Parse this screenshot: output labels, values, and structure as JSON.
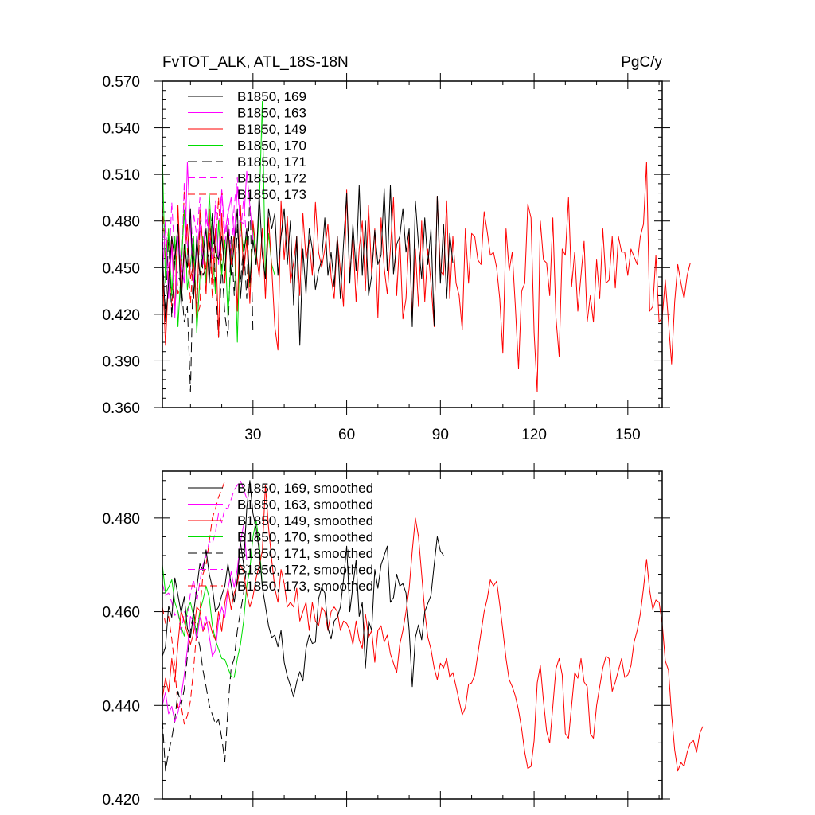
{
  "figure": {
    "title_left": "FvTOT_ALK, ATL_18S-18N",
    "title_right": "PgC/y"
  },
  "colors": {
    "black": "#000000",
    "magenta": "#ff00ff",
    "red": "#ff0000",
    "green": "#00dd00"
  },
  "chart_data": [
    {
      "type": "line",
      "title": "FvTOT_ALK, ATL_18S-18N",
      "units": "PgC/y",
      "xlabel": "",
      "ylabel": "",
      "xlim": [
        1,
        161
      ],
      "ylim": [
        0.36,
        0.57
      ],
      "xticks": [
        30,
        60,
        90,
        120,
        150
      ],
      "yticks": [
        0.36,
        0.39,
        0.42,
        0.45,
        0.48,
        0.51,
        0.54,
        0.57
      ],
      "ytick_labels": [
        "0.360",
        "0.390",
        "0.420",
        "0.450",
        "0.480",
        "0.510",
        "0.540",
        "0.570"
      ],
      "legend_position": "top-left",
      "series": [
        {
          "name": "B1850, 169",
          "color": "black",
          "dash": "solid",
          "values": [
            0.462,
            0.415,
            0.44,
            0.47,
            0.455,
            0.478,
            0.425,
            0.465,
            0.45,
            0.488,
            0.43,
            0.47,
            0.445,
            0.458,
            0.475,
            0.44,
            0.482,
            0.46,
            0.455,
            0.47,
            0.448,
            0.478,
            0.445,
            0.465,
            0.488,
            0.43,
            0.458,
            0.475,
            0.44,
            0.468,
            0.452,
            0.498,
            0.458,
            0.443,
            0.488,
            0.475,
            0.485,
            0.445,
            0.47,
            0.488,
            0.452,
            0.48,
            0.426,
            0.47,
            0.4,
            0.462,
            0.433,
            0.475,
            0.462,
            0.436,
            0.448,
            0.455,
            0.482,
            0.445,
            0.46,
            0.438,
            0.47,
            0.43,
            0.465,
            0.498,
            0.44,
            0.478,
            0.448,
            0.503,
            0.445,
            0.48,
            0.432,
            0.445,
            0.474,
            0.452,
            0.458,
            0.501,
            0.448,
            0.503,
            0.446,
            0.465,
            0.47,
            0.488,
            0.46,
            0.475,
            0.412,
            0.493,
            0.465,
            0.443,
            0.482,
            0.452,
            0.475,
            0.413,
            0.496,
            0.44,
            0.478,
            0.43,
            0.472,
            0.453
          ]
        },
        {
          "name": "B1850, 163",
          "color": "magenta",
          "dash": "solid",
          "values": [
            0.445,
            0.478,
            0.43,
            0.465,
            0.418,
            0.47,
            0.452,
            0.44,
            0.518,
            0.475,
            0.44,
            0.462,
            0.478,
            0.452,
            0.488,
            0.47,
            0.46,
            0.49,
            0.452,
            0.5,
            0.472,
            0.485,
            0.495,
            0.47,
            0.502,
            0.48,
            0.478,
            0.512,
            0.49,
            0.468
          ]
        },
        {
          "name": "B1850, 149",
          "color": "red",
          "dash": "solid",
          "values": [
            0.45,
            0.4,
            0.445,
            0.47,
            0.42,
            0.49,
            0.435,
            0.458,
            0.478,
            0.443,
            0.453,
            0.418,
            0.487,
            0.463,
            0.433,
            0.488,
            0.44,
            0.475,
            0.405,
            0.485,
            0.44,
            0.478,
            0.452,
            0.472,
            0.422,
            0.49,
            0.445,
            0.468,
            0.427,
            0.48,
            0.46,
            0.444,
            0.475,
            0.43,
            0.482,
            0.45,
            0.412,
            0.397,
            0.493,
            0.455,
            0.483,
            0.44,
            0.453,
            0.47,
            0.432,
            0.485,
            0.455,
            0.468,
            0.445,
            0.492,
            0.46,
            0.45,
            0.462,
            0.478,
            0.444,
            0.43,
            0.47,
            0.448,
            0.425,
            0.5,
            0.445,
            0.47,
            0.428,
            0.462,
            0.48,
            0.435,
            0.49,
            0.445,
            0.475,
            0.418,
            0.482,
            0.45,
            0.433,
            0.462,
            0.495,
            0.432,
            0.47,
            0.417,
            0.43,
            0.472,
            0.418,
            0.462,
            0.425,
            0.48,
            0.428,
            0.462,
            0.44,
            0.412,
            0.496,
            0.448,
            0.445,
            0.493,
            0.43,
            0.47,
            0.44,
            0.432,
            0.41,
            0.475,
            0.44,
            0.472,
            0.47,
            0.455,
            0.452,
            0.486,
            0.473,
            0.458,
            0.46,
            0.45,
            0.43,
            0.395,
            0.475,
            0.448,
            0.46,
            0.425,
            0.385,
            0.435,
            0.44,
            0.491,
            0.482,
            0.408,
            0.37,
            0.48,
            0.455,
            0.453,
            0.432,
            0.482,
            0.418,
            0.393,
            0.462,
            0.458,
            0.495,
            0.438,
            0.46,
            0.422,
            0.445,
            0.467,
            0.415,
            0.432,
            0.415,
            0.455,
            0.43,
            0.475,
            0.44,
            0.442,
            0.47,
            0.437,
            0.47,
            0.46,
            0.46,
            0.445,
            0.462,
            0.457,
            0.452,
            0.47,
            0.478,
            0.518,
            0.422,
            0.425,
            0.458,
            0.415,
            0.418,
            0.442,
            0.415,
            0.388,
            0.428,
            0.452,
            0.44,
            0.43,
            0.445,
            0.453
          ]
        },
        {
          "name": "B1850, 170",
          "color": "green",
          "dash": "solid",
          "values": [
            0.523,
            0.44,
            0.475,
            0.432,
            0.47,
            0.412,
            0.45,
            0.487,
            0.436,
            0.452,
            0.47,
            0.408,
            0.443,
            0.47,
            0.44,
            0.498,
            0.462,
            0.433,
            0.48,
            0.445,
            0.468,
            0.418,
            0.455,
            0.472,
            0.402,
            0.48,
            0.46,
            0.47,
            0.438,
            0.478,
            0.452,
            0.488,
            0.557,
            0.443,
            0.472,
            0.452,
            0.445
          ]
        },
        {
          "name": "B1850, 171",
          "color": "black",
          "dash": "longdash",
          "values": [
            0.448,
            0.422,
            0.47,
            0.418,
            0.455,
            0.445,
            0.44,
            0.415,
            0.425,
            0.37,
            0.465,
            0.418,
            0.48,
            0.445,
            0.45,
            0.462,
            0.485,
            0.44,
            0.405,
            0.452,
            0.42,
            0.405,
            0.47,
            0.432,
            0.478,
            0.44,
            0.465,
            0.43,
            0.5,
            0.408
          ]
        },
        {
          "name": "B1850, 172",
          "color": "magenta",
          "dash": "dash",
          "values": [
            0.462,
            0.48,
            0.445,
            0.492,
            0.455,
            0.478,
            0.44,
            0.505,
            0.465,
            0.448,
            0.485,
            0.47,
            0.495,
            0.462,
            0.482,
            0.47,
            0.455,
            0.493,
            0.478,
            0.5,
            0.462,
            0.488,
            0.455,
            0.49,
            0.508,
            0.47,
            0.495,
            0.465
          ]
        },
        {
          "name": "B1850, 173",
          "color": "red",
          "dash": "dash",
          "values": [
            0.49,
            0.455,
            0.475,
            0.422,
            0.468,
            0.433,
            0.44,
            0.5,
            0.462,
            0.427,
            0.46,
            0.418,
            0.425,
            0.47,
            0.448,
            0.475,
            0.43,
            0.462,
            0.495,
            0.452
          ]
        }
      ]
    },
    {
      "type": "line",
      "title": "",
      "xlabel": "",
      "ylabel": "",
      "xlim": [
        1,
        161
      ],
      "ylim": [
        0.42,
        0.49
      ],
      "xticks": [
        30,
        60,
        90,
        120,
        150
      ],
      "yticks": [
        0.42,
        0.44,
        0.46,
        0.48
      ],
      "ytick_labels": [
        "0.420",
        "0.440",
        "0.460",
        "0.480"
      ],
      "legend_position": "top-left",
      "series": [
        {
          "name": "B1850, 169, smoothed",
          "color": "black",
          "dash": "solid",
          "values": [
            0.4505,
            0.4525,
            0.4612,
            0.4588,
            0.4672,
            0.4635,
            0.4597,
            0.4632,
            0.4565,
            0.4545,
            0.4598,
            0.465,
            0.4702,
            0.4688,
            0.4732,
            0.468,
            0.4652,
            0.46,
            0.461,
            0.4635,
            0.4655,
            0.4702,
            0.4658,
            0.462,
            0.467,
            0.4748,
            0.47,
            0.482,
            0.488,
            0.481,
            0.4778,
            0.473,
            0.4652,
            0.4612,
            0.457,
            0.4545,
            0.455,
            0.4525,
            0.456,
            0.4492,
            0.4462,
            0.4442,
            0.4418,
            0.445,
            0.4472,
            0.4452,
            0.4522,
            0.455,
            0.4532,
            0.4535,
            0.4628,
            0.4652,
            0.464,
            0.4565,
            0.4542,
            0.458,
            0.4588,
            0.461,
            0.4668,
            0.474,
            0.46,
            0.4655,
            0.471,
            0.459,
            0.462,
            0.448,
            0.458,
            0.456,
            0.469,
            0.465,
            0.47,
            0.472,
            0.474,
            0.462,
            0.463,
            0.468,
            0.4655,
            0.466,
            0.464,
            0.456,
            0.444,
            0.4545,
            0.4572,
            0.454,
            0.46,
            0.4618,
            0.4635,
            0.47,
            0.476,
            0.473,
            0.472
          ]
        },
        {
          "name": "B1850, 163, smoothed",
          "color": "magenta",
          "dash": "solid",
          "values": [
            0.44,
            0.4428,
            0.4382,
            0.4398,
            0.4365,
            0.4385,
            0.442,
            0.4465,
            0.452,
            0.459,
            0.4578,
            0.454,
            0.4588,
            0.4562,
            0.459,
            0.4548,
            0.4505,
            0.4518,
            0.4582,
            0.461,
            0.4588,
            0.4648,
            0.4685,
            0.4652,
            0.4692,
            0.475,
            0.4785,
            0.471
          ]
        },
        {
          "name": "B1850, 149, smoothed",
          "color": "red",
          "dash": "solid",
          "values": [
            0.4415,
            0.4458,
            0.4428,
            0.45,
            0.445,
            0.4532,
            0.4602,
            0.4578,
            0.4555,
            0.453,
            0.4555,
            0.461,
            0.4602,
            0.4558,
            0.4575,
            0.458,
            0.4555,
            0.454,
            0.46,
            0.4558,
            0.462,
            0.465,
            0.4605,
            0.464,
            0.466,
            0.47,
            0.4685,
            0.464,
            0.461,
            0.4632,
            0.4672,
            0.4698,
            0.473,
            0.487,
            0.478,
            0.471,
            0.465,
            0.462,
            0.469,
            0.466,
            0.461,
            0.462,
            0.461,
            0.465,
            0.458,
            0.46,
            0.462,
            0.456,
            0.462,
            0.458,
            0.457,
            0.461,
            0.46,
            0.456,
            0.46,
            0.461,
            0.46,
            0.456,
            0.458,
            0.4575,
            0.456,
            0.453,
            0.458,
            0.454,
            0.4522,
            0.4595,
            0.4545,
            0.456,
            0.4492,
            0.456,
            0.457,
            0.4535,
            0.455,
            0.451,
            0.449,
            0.447,
            0.453,
            0.456,
            0.46,
            0.465,
            0.473,
            0.48,
            0.476,
            0.468,
            0.46,
            0.4545,
            0.452,
            0.448,
            0.4455,
            0.449,
            0.448,
            0.45,
            0.446,
            0.447,
            0.444,
            0.441,
            0.438,
            0.4395,
            0.4445,
            0.4448,
            0.4465,
            0.451,
            0.4555,
            0.46,
            0.4628,
            0.4668,
            0.4655,
            0.4665,
            0.4615,
            0.456,
            0.45,
            0.4455,
            0.444,
            0.442,
            0.439,
            0.435,
            0.43,
            0.4265,
            0.427,
            0.4325,
            0.4448,
            0.4485,
            0.441,
            0.4345,
            0.432,
            0.4398,
            0.4478,
            0.45,
            0.4465,
            0.434,
            0.433,
            0.44,
            0.447,
            0.4458,
            0.45,
            0.445,
            0.444,
            0.434,
            0.433,
            0.44,
            0.444,
            0.448,
            0.4505,
            0.45,
            0.443,
            0.445,
            0.4475,
            0.45,
            0.446,
            0.4465,
            0.4485,
            0.4535,
            0.456,
            0.4595,
            0.465,
            0.4712,
            0.4645,
            0.4605,
            0.4625,
            0.462,
            0.4575,
            0.4495,
            0.4475,
            0.438,
            0.4305,
            0.426,
            0.4278,
            0.427,
            0.43,
            0.432,
            0.4325,
            0.43,
            0.434,
            0.4355
          ]
        },
        {
          "name": "B1850, 170, smoothed",
          "color": "green",
          "dash": "solid",
          "values": [
            0.47,
            0.464,
            0.4652,
            0.4668,
            0.462,
            0.46,
            0.4568,
            0.4548,
            0.4605,
            0.462,
            0.459,
            0.455,
            0.46,
            0.4625,
            0.4655,
            0.463,
            0.457,
            0.454,
            0.452,
            0.45,
            0.4498,
            0.448,
            0.4462,
            0.446,
            0.45,
            0.453,
            0.458,
            0.4655,
            0.469,
            0.476,
            0.4795,
            0.4745,
            0.4655
          ]
        },
        {
          "name": "B1850, 171, smoothed",
          "color": "black",
          "dash": "longdash",
          "values": [
            0.437,
            0.426,
            0.43,
            0.433,
            0.437,
            0.443,
            0.44,
            0.4435,
            0.4505,
            0.456,
            0.46,
            0.4555,
            0.4525,
            0.4475,
            0.444,
            0.44,
            0.438,
            0.436,
            0.437,
            0.433,
            0.428,
            0.4395,
            0.448,
            0.45,
            0.456,
            0.46,
            0.464,
            0.47
          ]
        },
        {
          "name": "B1850, 172, smoothed",
          "color": "magenta",
          "dash": "dash",
          "values": [
            0.466,
            0.4635,
            0.464,
            0.462,
            0.4592,
            0.46,
            0.4552,
            0.46,
            0.459,
            0.464,
            0.4668,
            0.462,
            0.4665,
            0.47,
            0.4718,
            0.475,
            0.4745,
            0.477,
            0.481,
            0.479,
            0.4822,
            0.482,
            0.484,
            0.486,
            0.487,
            0.488,
            0.486,
            0.4842
          ]
        },
        {
          "name": "B1850, 173, smoothed",
          "color": "red",
          "dash": "dash",
          "values": [
            0.461,
            0.4575,
            0.459,
            0.4542,
            0.448,
            0.4395,
            0.44,
            0.436,
            0.4378,
            0.441,
            0.448,
            0.456,
            0.46,
            0.468,
            0.47,
            0.475,
            0.48,
            0.482,
            0.4845,
            0.486,
            0.488
          ]
        }
      ]
    }
  ]
}
